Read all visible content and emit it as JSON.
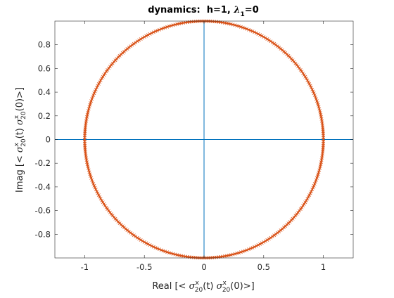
{
  "chart_data": {
    "type": "line",
    "title": {
      "main": "dynamics:  h=1, ",
      "symbol": "λ",
      "subscript": "1",
      "suffix": "=0"
    },
    "xlabel": {
      "prefix": "Real [< ",
      "symbol": "σ",
      "superscript": "x",
      "subscript": "20",
      "middle": "(t) ",
      "symbol2": "σ",
      "superscript2": "x",
      "subscript2": "20",
      "suffix": "(0)>]"
    },
    "ylabel": {
      "prefix": "Imag [< ",
      "symbol": "σ",
      "superscript": "x",
      "subscript": "20",
      "middle": "(t) ",
      "symbol2": "σ",
      "superscript2": "x",
      "subscript2": "20",
      "suffix": "(0)>]"
    },
    "xlim": [
      -1.25,
      1.25
    ],
    "ylim": [
      -1,
      1
    ],
    "xticks": [
      -1,
      -0.5,
      0,
      0.5,
      1
    ],
    "xtick_labels": [
      "-1",
      "-0.5",
      "0",
      "0.5",
      "1"
    ],
    "yticks": [
      -0.8,
      -0.6,
      -0.4,
      -0.2,
      0,
      0.2,
      0.4,
      0.6,
      0.8
    ],
    "ytick_labels": [
      "-0.8",
      "-0.6",
      "-0.4",
      "-0.2",
      "0",
      "0.2",
      "0.4",
      "0.6",
      "0.8"
    ],
    "grid": false,
    "reference_lines": {
      "horizontal_y": 0,
      "vertical_x": 0,
      "color": "#0072BD"
    },
    "series": [
      {
        "shape": "unit-circle",
        "center": [
          0,
          0
        ],
        "radius": 1,
        "color": "#D95319",
        "marker": "x"
      }
    ]
  }
}
